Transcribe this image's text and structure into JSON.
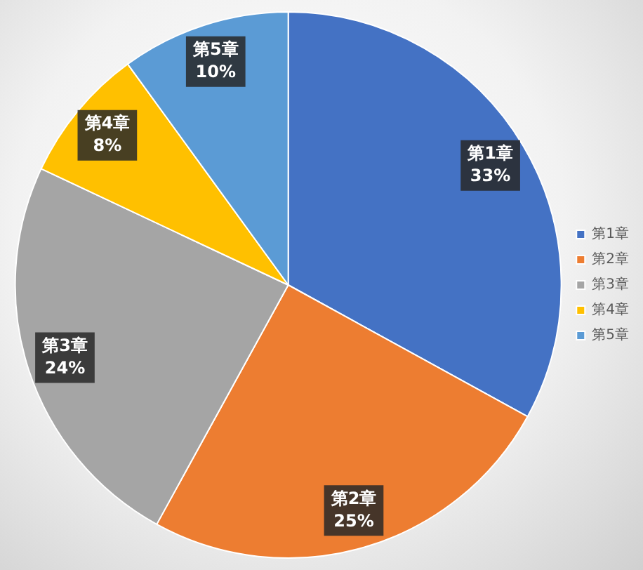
{
  "chart_data": {
    "type": "pie",
    "categories": [
      "第1章",
      "第2章",
      "第3章",
      "第4章",
      "第5章"
    ],
    "values": [
      33,
      25,
      24,
      8,
      10
    ],
    "colors": [
      "#4472c4",
      "#ed7d31",
      "#a5a5a5",
      "#ffc000",
      "#5b9bd5"
    ],
    "value_labels": [
      "33%",
      "25%",
      "24%",
      "8%",
      "10%"
    ],
    "legend": "right"
  }
}
